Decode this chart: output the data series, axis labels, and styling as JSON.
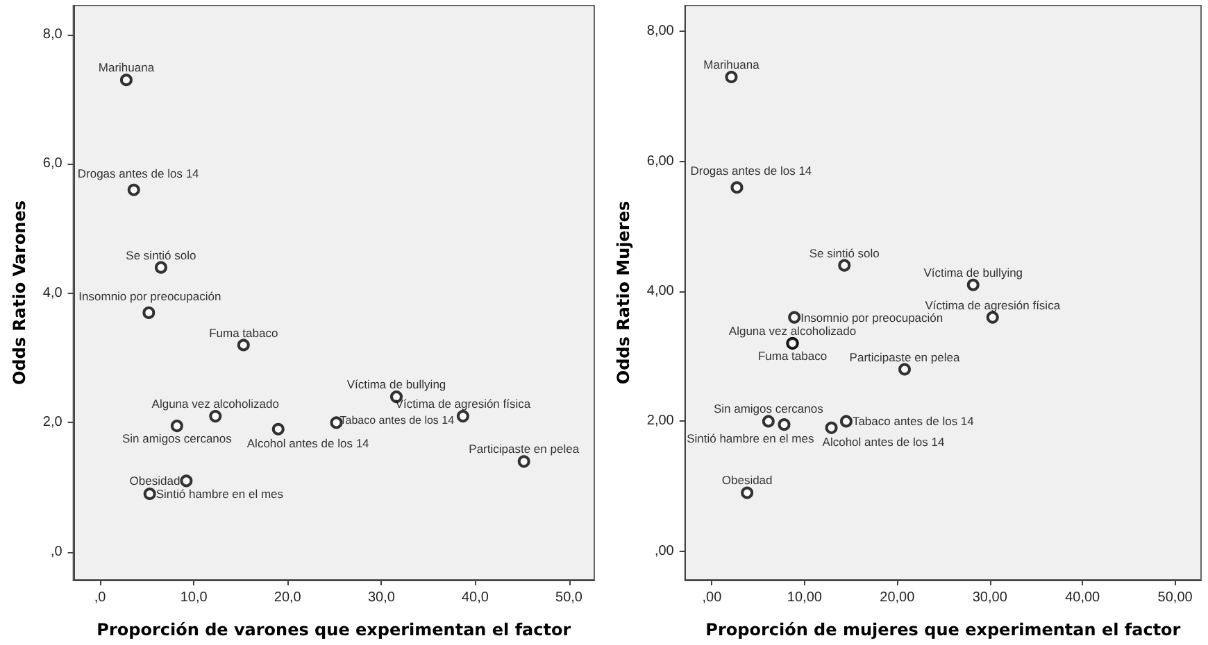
{
  "chart_data": [
    {
      "type": "scatter",
      "xlabel": "Proporción de varones que experimentan el factor",
      "ylabel": "Odds Ratio Varones",
      "marker": "circle",
      "grid": false,
      "x": [
        2.8,
        3.6,
        6.5,
        5.2,
        15.3,
        12.3,
        8.2,
        19.0,
        25.2,
        31.6,
        38.7,
        45.2,
        9.2,
        5.3
      ],
      "series": [
        {
          "color": "#000000",
          "values": [
            7.3,
            5.6,
            4.4,
            3.7,
            3.2,
            2.1,
            1.95,
            1.9,
            2.0,
            2.4,
            2.1,
            1.4,
            1.1,
            0.9
          ]
        }
      ],
      "xlim": [
        -2.85,
        52.7
      ],
      "ylim": [
        -0.43,
        8.45
      ],
      "xticks": [
        {
          "value": 0,
          "label": ",0"
        },
        {
          "value": 10,
          "label": "10,0"
        },
        {
          "value": 20,
          "label": "20,0"
        },
        {
          "value": 30,
          "label": "30,0"
        },
        {
          "value": 40,
          "label": "40,0"
        },
        {
          "value": 50,
          "label": "50,0"
        }
      ],
      "yticks": [
        {
          "value": 0,
          "label": ",0"
        },
        {
          "value": 2,
          "label": "2,0"
        },
        {
          "value": 4,
          "label": "4,0"
        },
        {
          "value": 6,
          "label": "6,0"
        },
        {
          "value": 8,
          "label": "8,0"
        }
      ],
      "annotations": [
        {
          "text": "Marihuana",
          "x": 2.8,
          "y": 7.3
        },
        {
          "text": "Drogas antes de los 14",
          "x": 3.6,
          "y": 5.6
        },
        {
          "text": "Se sintió solo",
          "x": 6.5,
          "y": 4.4
        },
        {
          "text": "Insomnio por preocupación",
          "x": 5.2,
          "y": 3.7
        },
        {
          "text": "Fuma tabaco",
          "x": 15.3,
          "y": 3.2
        },
        {
          "text": "Alguna vez alcoholizado",
          "x": 12.3,
          "y": 2.1
        },
        {
          "text": "Sin amigos cercanos",
          "x": 8.2,
          "y": 1.95
        },
        {
          "text": "Alcohol antes de los 14",
          "x": 19.0,
          "y": 1.9
        },
        {
          "text": "Tabaco antes de los 14",
          "x": 25.2,
          "y": 2.0
        },
        {
          "text": "Víctima de bullying",
          "x": 31.6,
          "y": 2.4
        },
        {
          "text": "Víctima de agresión física",
          "x": 38.7,
          "y": 2.1
        },
        {
          "text": "Participaste en pelea",
          "x": 45.2,
          "y": 1.4
        },
        {
          "text": "Obesidad",
          "x": 9.2,
          "y": 1.1
        },
        {
          "text": "Sintió hambre en el mes",
          "x": 5.3,
          "y": 0.9
        }
      ]
    },
    {
      "type": "scatter",
      "xlabel": "Proporción de mujeres que experimentan el factor",
      "ylabel": "Odds Ratio Mujeres",
      "marker": "circle",
      "grid": false,
      "x": [
        2.1,
        2.7,
        14.3,
        28.2,
        30.3,
        8.9,
        8.7,
        8.7,
        20.8,
        6.1,
        7.8,
        12.9,
        14.5,
        3.8
      ],
      "series": [
        {
          "color": "#000000",
          "values": [
            7.3,
            5.6,
            4.4,
            4.1,
            3.6,
            3.6,
            3.2,
            3.2,
            2.8,
            2.0,
            1.95,
            1.9,
            2.0,
            0.9
          ]
        }
      ],
      "xlim": [
        -2.9,
        52.8
      ],
      "ylim": [
        -0.44,
        8.4
      ],
      "xticks": [
        {
          "value": 0,
          "label": ",00"
        },
        {
          "value": 10,
          "label": "10,00"
        },
        {
          "value": 20,
          "label": "20,00"
        },
        {
          "value": 30,
          "label": "30,00"
        },
        {
          "value": 40,
          "label": "40,00"
        },
        {
          "value": 50,
          "label": "50,00"
        }
      ],
      "yticks": [
        {
          "value": 0,
          "label": ",00"
        },
        {
          "value": 2,
          "label": "2,00"
        },
        {
          "value": 4,
          "label": "4,00"
        },
        {
          "value": 6,
          "label": "6,00"
        },
        {
          "value": 8,
          "label": "8,00"
        }
      ],
      "annotations": [
        {
          "text": "Marihuana",
          "x": 2.1,
          "y": 7.3
        },
        {
          "text": "Drogas antes de los 14",
          "x": 2.7,
          "y": 5.6
        },
        {
          "text": "Se sintió solo",
          "x": 14.3,
          "y": 4.4
        },
        {
          "text": "Víctima de bullying",
          "x": 28.2,
          "y": 4.1
        },
        {
          "text": "Víctima de agresión física",
          "x": 30.3,
          "y": 3.6
        },
        {
          "text": "Insomnio por preocupación",
          "x": 8.9,
          "y": 3.6
        },
        {
          "text": "Alguna vez alcoholizado",
          "x": 8.7,
          "y": 3.2
        },
        {
          "text": "Fuma tabaco",
          "x": 8.7,
          "y": 3.2
        },
        {
          "text": "Participaste en pelea",
          "x": 20.8,
          "y": 2.8
        },
        {
          "text": "Sin amigos cercanos",
          "x": 6.1,
          "y": 2.0
        },
        {
          "text": "Sintió hambre en el mes",
          "x": 7.8,
          "y": 1.95
        },
        {
          "text": "Alcohol antes de los 14",
          "x": 12.9,
          "y": 1.9
        },
        {
          "text": "Tabaco antes de los 14",
          "x": 14.5,
          "y": 2.0
        },
        {
          "text": "Obesidad",
          "x": 3.8,
          "y": 0.9
        }
      ]
    }
  ]
}
